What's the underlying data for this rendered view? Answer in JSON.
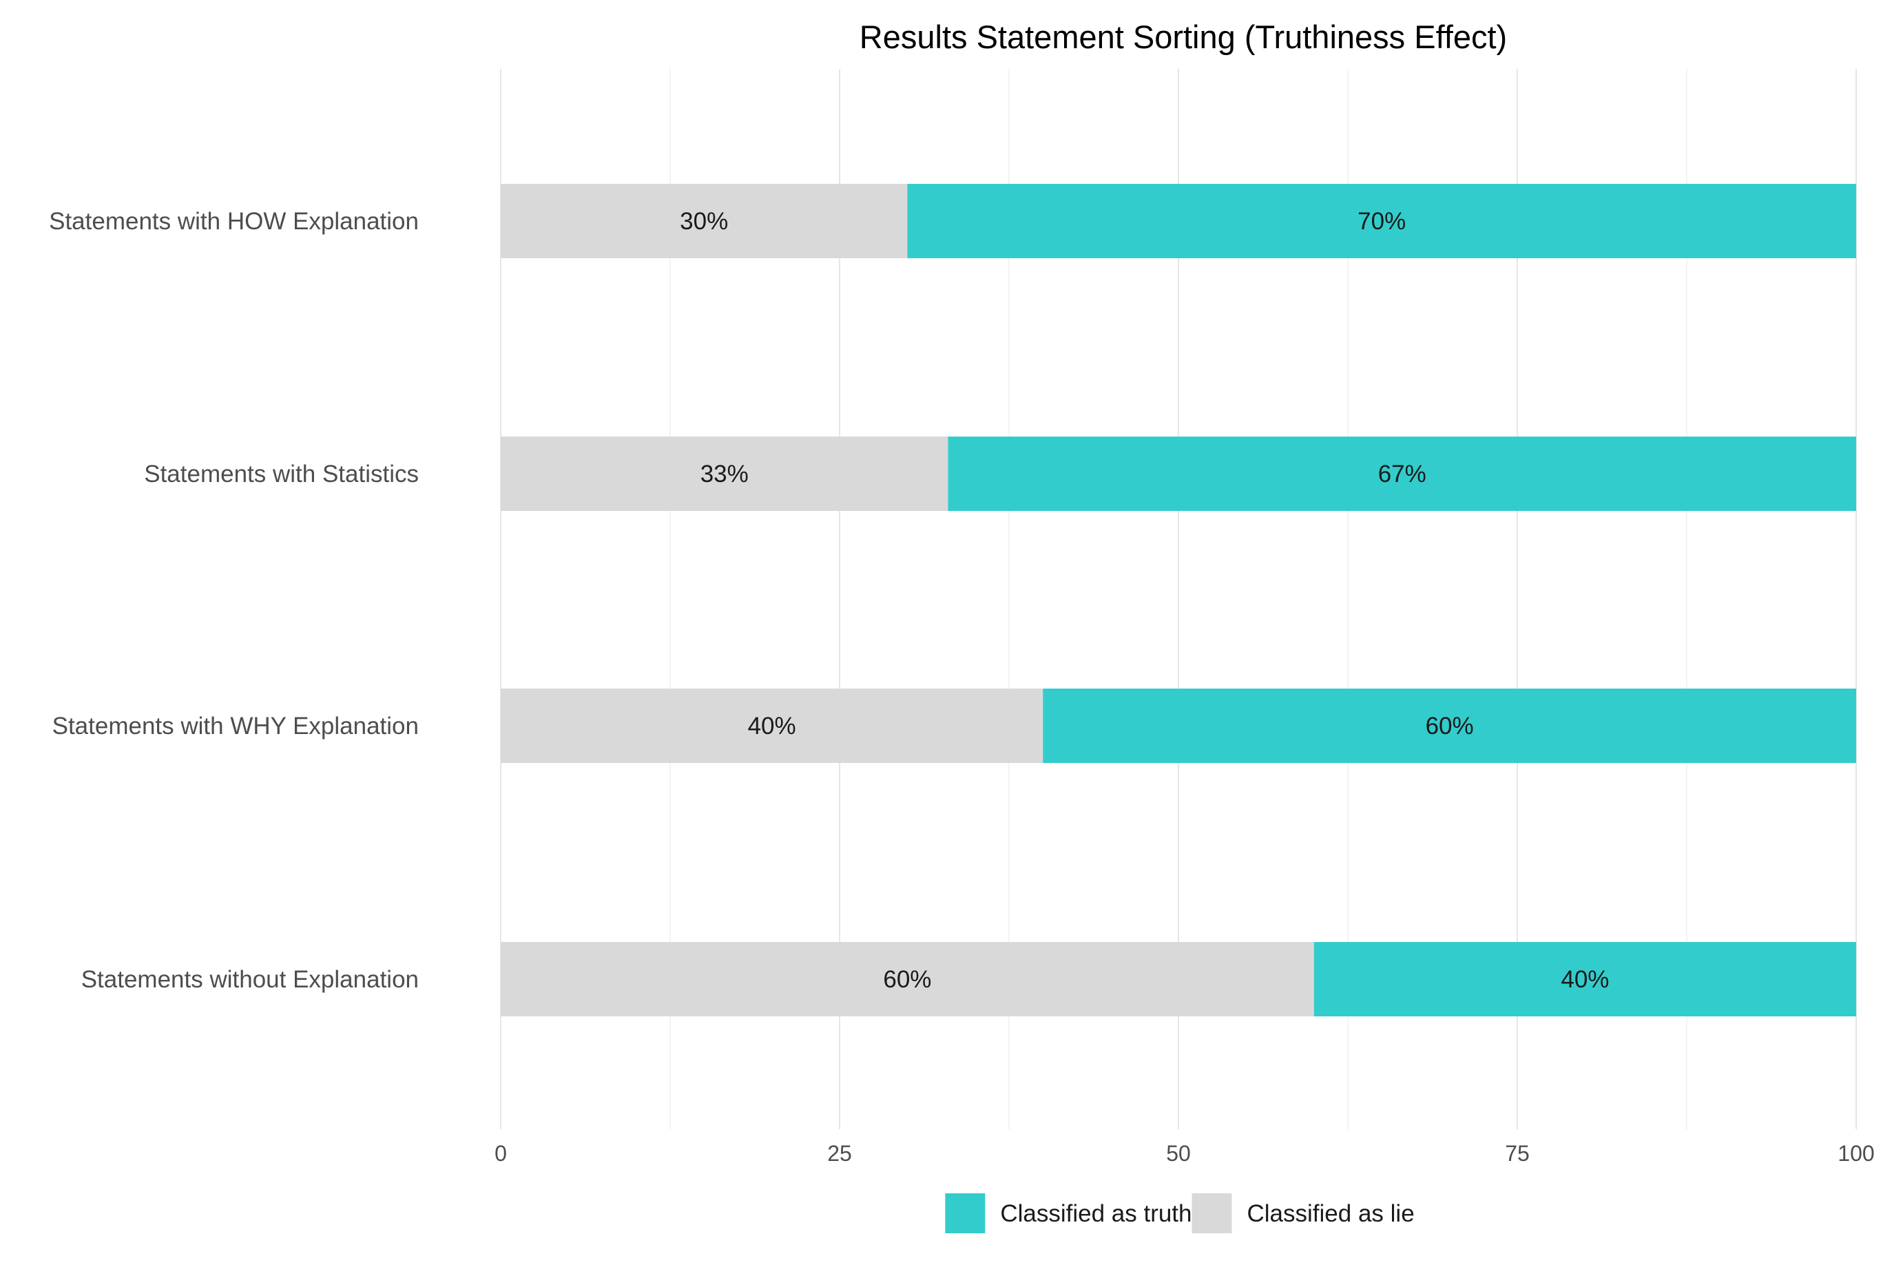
{
  "chart_data": {
    "type": "bar",
    "orientation": "horizontal",
    "stacked": true,
    "title": "Results Statement Sorting (Truthiness Effect)",
    "xlabel": "",
    "ylabel": "",
    "xlim": [
      0,
      100
    ],
    "x_ticks": [
      0,
      25,
      50,
      75,
      100
    ],
    "grid": true,
    "legend_position": "bottom",
    "categories": [
      "Statements with HOW Explanation",
      "Statements with Statistics",
      "Statements with WHY Explanation",
      "Statements without Explanation"
    ],
    "series": [
      {
        "name": "Classified as lie",
        "color": "#d9d9d9",
        "values": [
          30,
          33,
          40,
          60
        ],
        "labels": [
          "30%",
          "33%",
          "40%",
          "60%"
        ]
      },
      {
        "name": "Classified as truth",
        "color": "#33cccc",
        "values": [
          70,
          67,
          60,
          40
        ],
        "labels": [
          "70%",
          "67%",
          "60%",
          "40%"
        ]
      }
    ],
    "legend": [
      {
        "name": "Classified as truth",
        "color": "#33cccc"
      },
      {
        "name": "Classified as lie",
        "color": "#d9d9d9"
      }
    ]
  }
}
